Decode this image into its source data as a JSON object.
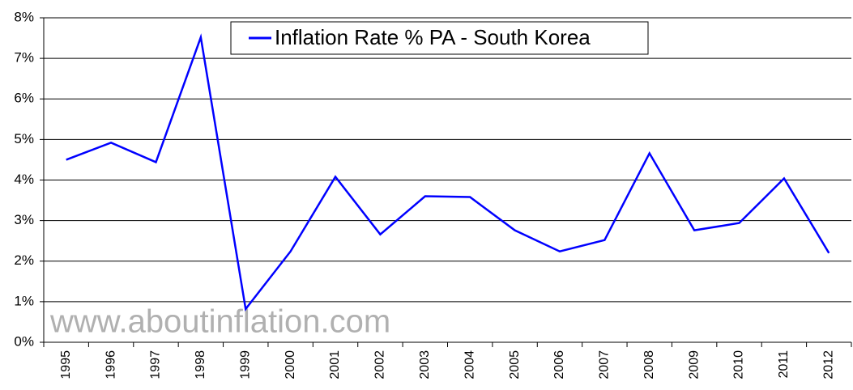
{
  "chart_data": {
    "type": "line",
    "watermark": "www.aboutinflation.com",
    "categories": [
      "1995",
      "1996",
      "1997",
      "1998",
      "1999",
      "2000",
      "2001",
      "2002",
      "2003",
      "2004",
      "2005",
      "2006",
      "2007",
      "2008",
      "2009",
      "2010",
      "2011",
      "2012"
    ],
    "series": [
      {
        "name": "Inflation Rate % PA - South Korea",
        "color": "#0000ff",
        "values": [
          4.5,
          4.92,
          4.44,
          7.52,
          0.82,
          2.24,
          4.08,
          2.66,
          3.6,
          3.58,
          2.76,
          2.24,
          2.52,
          4.66,
          2.76,
          2.94,
          4.04,
          2.2
        ]
      }
    ],
    "ylim": [
      0,
      8
    ],
    "yticks": [
      {
        "value": 0,
        "label": "0%"
      },
      {
        "value": 1,
        "label": "1%"
      },
      {
        "value": 2,
        "label": "2%"
      },
      {
        "value": 3,
        "label": "3%"
      },
      {
        "value": 4,
        "label": "4%"
      },
      {
        "value": 5,
        "label": "5%"
      },
      {
        "value": 6,
        "label": "6%"
      },
      {
        "value": 7,
        "label": "7%"
      },
      {
        "value": 8,
        "label": "8%"
      }
    ],
    "grid": true,
    "legend": "top"
  }
}
